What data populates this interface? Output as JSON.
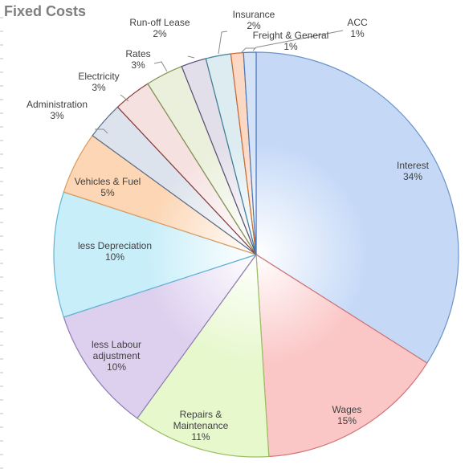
{
  "chart_data": {
    "type": "pie",
    "title": "Fixed Costs",
    "slices": [
      {
        "label": "Interest",
        "value": 34,
        "value_label": "34%",
        "color": "#c5d9f7",
        "stroke": "#6d93c9"
      },
      {
        "label": "Wages",
        "value": 15,
        "value_label": "15%",
        "color": "#fbc6c6",
        "stroke": "#d07373"
      },
      {
        "label": "Repairs & Maintenance",
        "value": 11,
        "value_label": "11%",
        "color": "#e6f8cc",
        "stroke": "#9bbf63"
      },
      {
        "label": "less Labour adjustment",
        "value": 10,
        "value_label": "10%",
        "color": "#ddd0ef",
        "stroke": "#8e7bb5"
      },
      {
        "label": "less Depreciation",
        "value": 10,
        "value_label": "10%",
        "color": "#c8eef9",
        "stroke": "#5fb5d4"
      },
      {
        "label": "Vehicles & Fuel",
        "value": 5,
        "value_label": "5%",
        "color": "#fcd6b5",
        "stroke": "#dd9a5c"
      },
      {
        "label": "Administration",
        "value": 3,
        "value_label": "3%",
        "color": "#dde3ec",
        "stroke": "#5a6c88"
      },
      {
        "label": "Electricity",
        "value": 3,
        "value_label": "3%",
        "color": "#f6e1e1",
        "stroke": "#8b3a3a"
      },
      {
        "label": "Rates",
        "value": 3,
        "value_label": "3%",
        "color": "#eaf0dc",
        "stroke": "#7e9450"
      },
      {
        "label": "Run-off Lease",
        "value": 2,
        "value_label": "2%",
        "color": "#e3dfea",
        "stroke": "#5b4e78"
      },
      {
        "label": "Insurance",
        "value": 2,
        "value_label": "2%",
        "color": "#dcecf1",
        "stroke": "#3d8299"
      },
      {
        "label": "Freight & General",
        "value": 1,
        "value_label": "1%",
        "color": "#fbd8c4",
        "stroke": "#d26a2f"
      },
      {
        "label": "ACC",
        "value": 1,
        "value_label": "1%",
        "color": "#d4e2f5",
        "stroke": "#4a78c0"
      }
    ],
    "label_lines": {
      "Interest": [
        "Interest",
        "34%"
      ],
      "Wages": [
        "Wages",
        "15%"
      ],
      "Repairs & Maintenance": [
        "Repairs &",
        "Maintenance",
        "11%"
      ],
      "less Labour adjustment": [
        "less Labour",
        "adjustment",
        "10%"
      ],
      "less Depreciation": [
        "less Depreciation",
        "10%"
      ],
      "Vehicles & Fuel": [
        "Vehicles & Fuel",
        "5%"
      ],
      "Administration": [
        "Administration",
        "3%"
      ],
      "Electricity": [
        "Electricity",
        "3%"
      ],
      "Rates": [
        "Rates",
        "3%"
      ],
      "Run-off Lease": [
        "Run-off Lease",
        "2%"
      ],
      "Insurance": [
        "Insurance",
        "2%"
      ],
      "Freight & General": [
        "Freight & General",
        "1%"
      ],
      "ACC": [
        "ACC",
        "1%"
      ]
    },
    "legend": "none"
  }
}
